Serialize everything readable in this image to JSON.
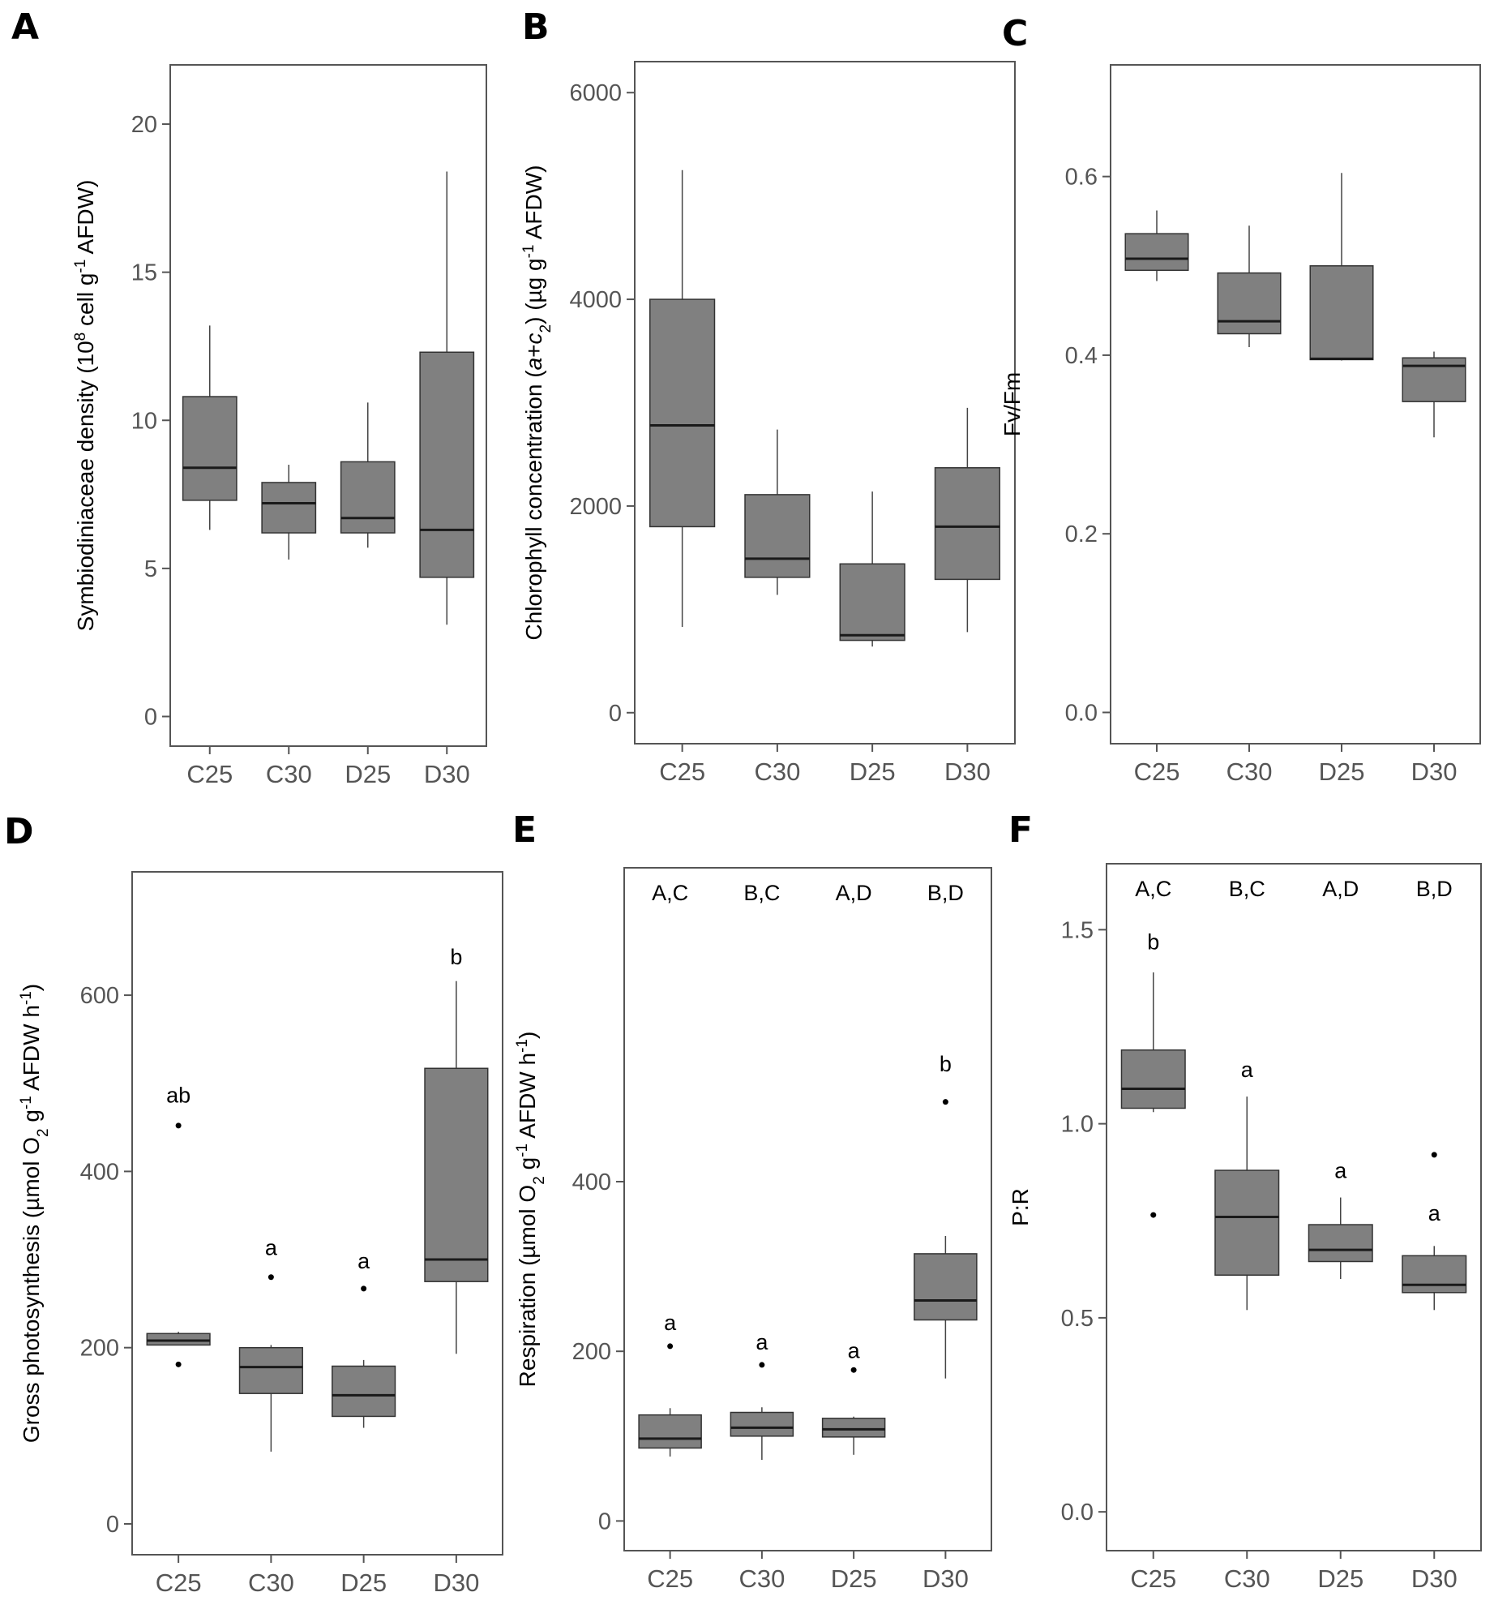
{
  "chart_data": [
    {
      "type": "boxplot",
      "panel": "A",
      "ylabel": "Symbiodiniaceae density (10<sup>8</sup> cell g<sup>-1</sup> AFDW)",
      "ylim": [
        -1,
        22
      ],
      "yticks": [
        0,
        5,
        10,
        15,
        20
      ],
      "categories": [
        "C25",
        "C30",
        "D25",
        "D30"
      ],
      "boxes": [
        {
          "min": 6.3,
          "q1": 7.3,
          "median": 8.4,
          "q3": 10.8,
          "max": 13.2,
          "outliers": []
        },
        {
          "min": 5.3,
          "q1": 6.2,
          "median": 7.2,
          "q3": 7.9,
          "max": 8.5,
          "outliers": []
        },
        {
          "min": 5.7,
          "q1": 6.2,
          "median": 6.7,
          "q3": 8.6,
          "max": 10.6,
          "outliers": []
        },
        {
          "min": 3.1,
          "q1": 4.7,
          "median": 6.3,
          "q3": 12.3,
          "max": 18.4,
          "outliers": []
        }
      ],
      "letters": [],
      "group_labels": []
    },
    {
      "type": "boxplot",
      "panel": "B",
      "ylabel": "Chlorophyll concentration (<i>a</i>+<i>c</i><sub>2</sub>) (µg g<sup>-1</sup> AFDW)",
      "ylim": [
        -300,
        6300
      ],
      "yticks": [
        0,
        2000,
        4000,
        6000
      ],
      "categories": [
        "C25",
        "C30",
        "D25",
        "D30"
      ],
      "boxes": [
        {
          "min": 830,
          "q1": 1800,
          "median": 2780,
          "q3": 4000,
          "max": 5250,
          "outliers": []
        },
        {
          "min": 1140,
          "q1": 1310,
          "median": 1490,
          "q3": 2110,
          "max": 2740,
          "outliers": []
        },
        {
          "min": 640,
          "q1": 700,
          "median": 750,
          "q3": 1440,
          "max": 2140,
          "outliers": []
        },
        {
          "min": 780,
          "q1": 1290,
          "median": 1800,
          "q3": 2370,
          "max": 2950,
          "outliers": []
        }
      ],
      "letters": [],
      "group_labels": []
    },
    {
      "type": "boxplot",
      "panel": "C",
      "ylabel": "Fv/Fm",
      "ylim": [
        -0.035,
        0.725
      ],
      "yticks": [
        "0.0",
        "0.2",
        "0.4",
        "0.6"
      ],
      "categories": [
        "C25",
        "C30",
        "D25",
        "D30"
      ],
      "boxes": [
        {
          "min": 0.483,
          "q1": 0.495,
          "median": 0.508,
          "q3": 0.536,
          "max": 0.562,
          "outliers": []
        },
        {
          "min": 0.409,
          "q1": 0.424,
          "median": 0.438,
          "q3": 0.492,
          "max": 0.545,
          "outliers": []
        },
        {
          "min": 0.394,
          "q1": 0.395,
          "median": 0.396,
          "q3": 0.5,
          "max": 0.604,
          "outliers": []
        },
        {
          "min": 0.308,
          "q1": 0.348,
          "median": 0.388,
          "q3": 0.397,
          "max": 0.404,
          "outliers": []
        }
      ],
      "letters": [],
      "group_labels": []
    },
    {
      "type": "boxplot",
      "panel": "D",
      "ylabel": "Gross photosynthesis (µmol O<sub>2</sub> g<sup>-1</sup> AFDW h<sup>-1</sup>)",
      "ylim": [
        -35,
        740
      ],
      "yticks": [
        0,
        200,
        400,
        600
      ],
      "categories": [
        "C25",
        "C30",
        "D25",
        "D30"
      ],
      "boxes": [
        {
          "min": 203,
          "q1": 203,
          "median": 208,
          "q3": 216,
          "max": 218,
          "outliers": [
            181,
            452
          ]
        },
        {
          "min": 82,
          "q1": 148,
          "median": 178,
          "q3": 200,
          "max": 203,
          "outliers": [
            280
          ]
        },
        {
          "min": 109,
          "q1": 122,
          "median": 146,
          "q3": 179,
          "max": 186,
          "outliers": [
            267
          ]
        },
        {
          "min": 193,
          "q1": 275,
          "median": 300,
          "q3": 517,
          "max": 616,
          "outliers": []
        }
      ],
      "letters": [
        {
          "text": "ab",
          "value": 478
        },
        {
          "text": "a",
          "value": 305
        },
        {
          "text": "a",
          "value": 290
        },
        {
          "text": "b",
          "value": 635
        }
      ],
      "group_labels": []
    },
    {
      "type": "boxplot",
      "panel": "E",
      "ylabel": "Respiration (µmol O<sub>2</sub> g<sup>-1</sup> AFDW h<sup>-1</sup>)",
      "ylim": [
        -35,
        770
      ],
      "yticks": [
        0,
        200,
        400
      ],
      "categories": [
        "C25",
        "C30",
        "D25",
        "D30"
      ],
      "boxes": [
        {
          "min": 76,
          "q1": 86,
          "median": 97,
          "q3": 125,
          "max": 133,
          "outliers": [
            206
          ]
        },
        {
          "min": 72,
          "q1": 100,
          "median": 110,
          "q3": 128,
          "max": 134,
          "outliers": [
            184
          ]
        },
        {
          "min": 78,
          "q1": 99,
          "median": 108,
          "q3": 121,
          "max": 123,
          "outliers": [
            178
          ]
        },
        {
          "min": 168,
          "q1": 237,
          "median": 260,
          "q3": 315,
          "max": 336,
          "outliers": [
            494
          ]
        }
      ],
      "letters": [
        {
          "text": "a",
          "value": 225
        },
        {
          "text": "a",
          "value": 202
        },
        {
          "text": "a",
          "value": 192
        },
        {
          "text": "b",
          "value": 530
        }
      ],
      "group_labels": [
        "A,C",
        "B,C",
        "A,D",
        "B,D"
      ]
    },
    {
      "type": "boxplot",
      "panel": "F",
      "ylabel": "P:R",
      "ylim": [
        -0.1,
        1.67
      ],
      "yticks": [
        "0.0",
        "0.5",
        "1.0",
        "1.5"
      ],
      "categories": [
        "C25",
        "C30",
        "D25",
        "D30"
      ],
      "boxes": [
        {
          "min": 1.03,
          "q1": 1.04,
          "median": 1.09,
          "q3": 1.19,
          "max": 1.39,
          "outliers": [
            0.765
          ]
        },
        {
          "min": 0.52,
          "q1": 0.61,
          "median": 0.76,
          "q3": 0.88,
          "max": 1.07,
          "outliers": []
        },
        {
          "min": 0.6,
          "q1": 0.645,
          "median": 0.675,
          "q3": 0.74,
          "max": 0.81,
          "outliers": []
        },
        {
          "min": 0.52,
          "q1": 0.565,
          "median": 0.585,
          "q3": 0.66,
          "max": 0.685,
          "outliers": [
            0.92
          ]
        }
      ],
      "letters": [
        {
          "text": "b",
          "value": 1.45
        },
        {
          "text": "a",
          "value": 1.12
        },
        {
          "text": "a",
          "value": 0.86
        },
        {
          "text": "a",
          "value": 0.75
        }
      ],
      "group_labels": [
        "A,C",
        "B,C",
        "A,D",
        "B,D"
      ]
    }
  ]
}
